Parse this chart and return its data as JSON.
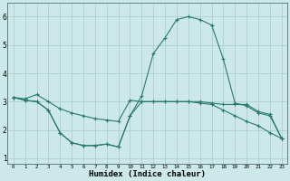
{
  "xlabel": "Humidex (Indice chaleur)",
  "bg_color": "#cce8e8",
  "grid_color": "#aad0d0",
  "line_color": "#2a7a6a",
  "xlim": [
    -0.5,
    23.5
  ],
  "ylim": [
    0.8,
    6.5
  ],
  "yticks": [
    1,
    2,
    3,
    4,
    5,
    6
  ],
  "xticks": [
    0,
    1,
    2,
    3,
    4,
    5,
    6,
    7,
    8,
    9,
    10,
    11,
    12,
    13,
    14,
    15,
    16,
    17,
    18,
    19,
    20,
    21,
    22,
    23
  ],
  "line1_x": [
    0,
    1,
    2,
    3,
    4,
    5,
    6,
    7,
    8,
    9,
    10,
    11,
    12,
    13,
    14,
    15,
    16,
    17,
    18,
    19,
    20,
    21,
    22,
    23
  ],
  "line1_y": [
    3.15,
    3.1,
    3.25,
    3.0,
    2.75,
    2.6,
    2.5,
    2.4,
    2.35,
    2.3,
    3.05,
    3.0,
    3.0,
    3.0,
    3.0,
    3.0,
    3.0,
    2.95,
    2.9,
    2.9,
    2.9,
    2.65,
    2.55,
    1.7
  ],
  "line2_x": [
    0,
    1,
    2,
    3,
    4,
    5,
    6,
    7,
    8,
    9,
    10,
    11,
    12,
    13,
    14,
    15,
    16,
    17,
    18,
    19,
    20,
    21,
    22,
    23
  ],
  "line2_y": [
    3.15,
    3.05,
    3.0,
    2.7,
    1.9,
    1.55,
    1.45,
    1.45,
    1.5,
    1.4,
    2.5,
    3.2,
    4.7,
    5.25,
    5.9,
    6.0,
    5.9,
    5.7,
    4.5,
    2.95,
    2.85,
    2.6,
    2.5,
    1.7
  ],
  "line3_x": [
    0,
    1,
    2,
    3,
    4,
    5,
    6,
    7,
    8,
    9,
    10,
    11,
    12,
    13,
    14,
    15,
    16,
    17,
    18,
    19,
    20,
    21,
    22,
    23
  ],
  "line3_y": [
    3.15,
    3.05,
    3.0,
    2.7,
    1.9,
    1.55,
    1.45,
    1.45,
    1.5,
    1.4,
    2.5,
    3.0,
    3.0,
    3.0,
    3.0,
    3.0,
    2.95,
    2.9,
    2.7,
    2.5,
    2.3,
    2.15,
    1.9,
    1.7
  ]
}
